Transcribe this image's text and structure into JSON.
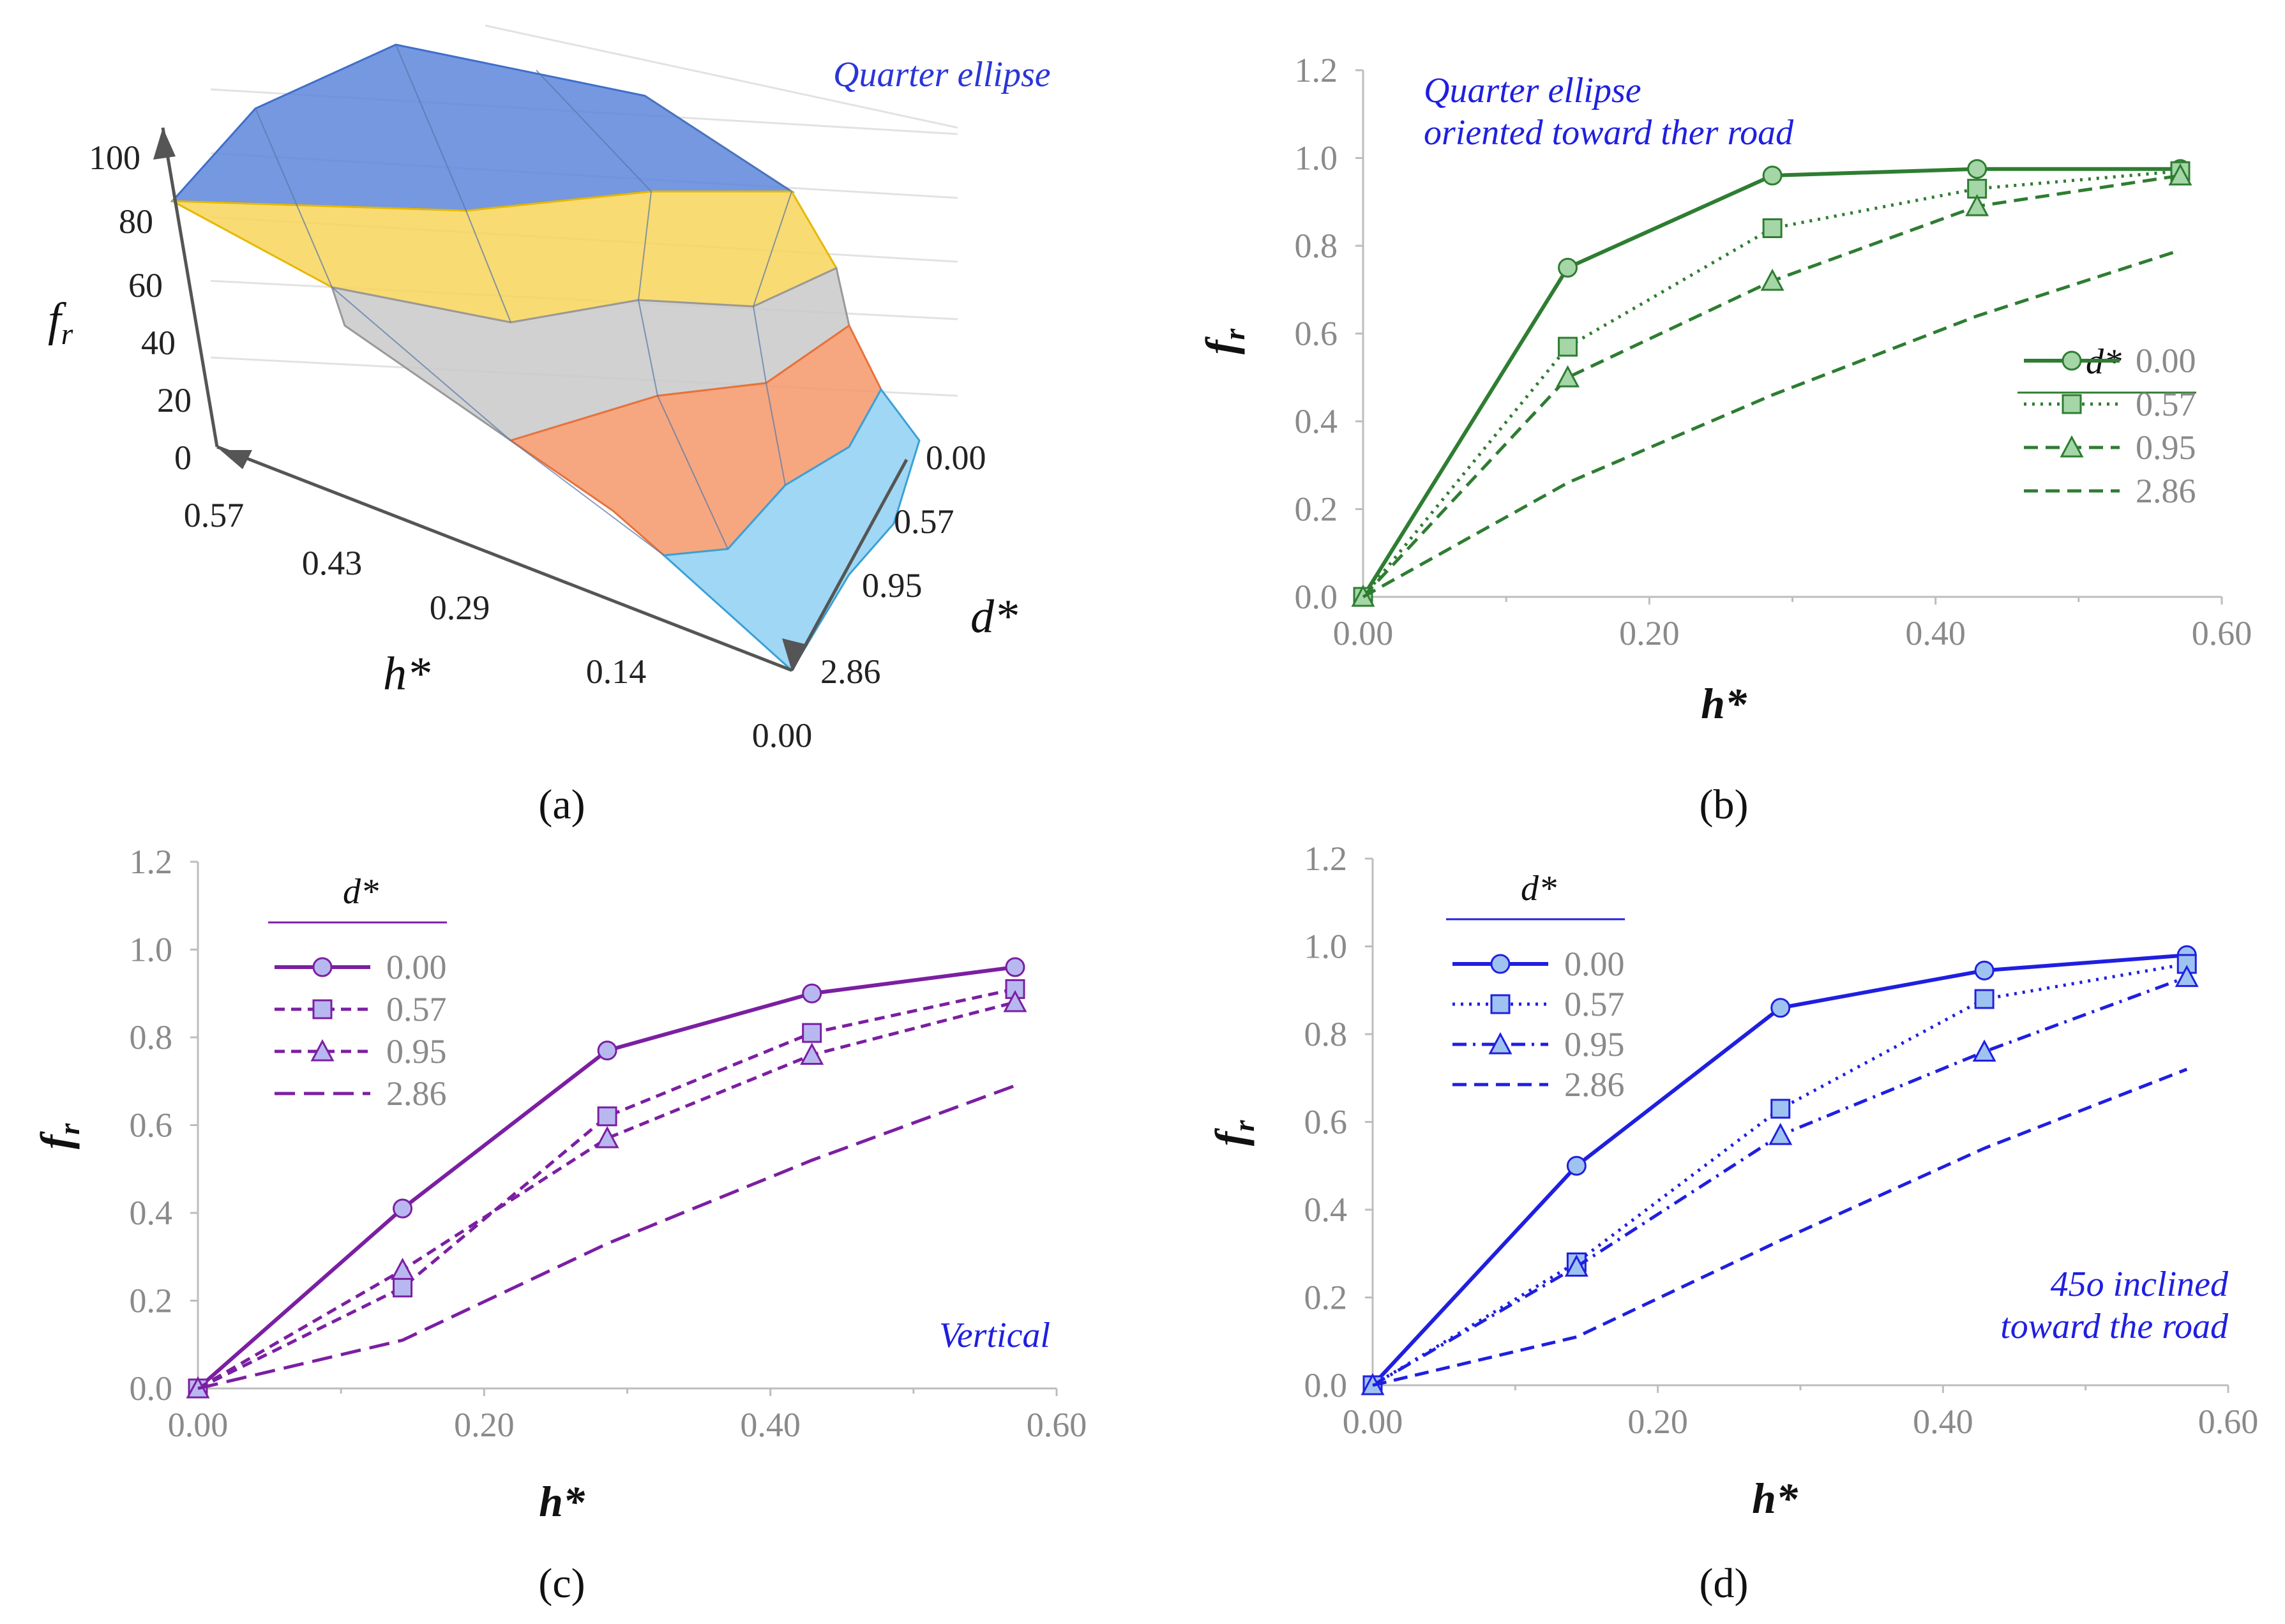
{
  "panel_labels": {
    "a": "(a)",
    "b": "(b)",
    "c": "(c)",
    "d": "(d)"
  },
  "chart_data": [
    {
      "id": "a",
      "type": "surface3d",
      "annotation": "Quarter ellipse",
      "zlabel": "f",
      "zlabel_sub": "r",
      "xlabel": "h*",
      "ylabel": "d*",
      "z_ticks": [
        "0",
        "20",
        "40",
        "60",
        "80",
        "100"
      ],
      "h_ticks": [
        "0.57",
        "0.43",
        "0.29",
        "0.14",
        "0.00"
      ],
      "d_ticks": [
        "0.00",
        "0.57",
        "0.95",
        "2.86"
      ],
      "colors": {
        "80-100": "#6f95e0",
        "60-80": "#f7d84a",
        "40-60": "#c8c8c8",
        "20-40": "#f39a6b",
        "0-20": "#7fc3ec"
      }
    },
    {
      "id": "b",
      "type": "line",
      "color": "#2e7d32",
      "marker_fill": "#a5d6a7",
      "annotation": [
        "Quarter ellipse",
        "oriented toward ther road"
      ],
      "annotation_color": "#1f1fe0",
      "xlabel": "h*",
      "ylabel": "f",
      "ylabel_sub": "r",
      "xlim": [
        0,
        0.6
      ],
      "ylim": [
        0,
        1.2
      ],
      "xticks": [
        "0.00",
        "0.20",
        "0.40",
        "0.60"
      ],
      "yticks": [
        "0.0",
        "0.2",
        "0.4",
        "0.6",
        "0.8",
        "1.0",
        "1.2"
      ],
      "legend_title": "d*",
      "x": [
        0,
        0.143,
        0.286,
        0.429,
        0.571
      ],
      "series": [
        {
          "name": "0.00",
          "values": [
            0,
            0.75,
            0.96,
            0.975,
            0.975
          ],
          "dash": "solid",
          "marker": "circle"
        },
        {
          "name": "0.57",
          "values": [
            0,
            0.57,
            0.84,
            0.93,
            0.97
          ],
          "dash": "dot",
          "marker": "square"
        },
        {
          "name": "0.95",
          "values": [
            0,
            0.5,
            0.72,
            0.89,
            0.96
          ],
          "dash": "dash",
          "marker": "triangle"
        },
        {
          "name": "2.86",
          "values": [
            0,
            0.26,
            0.46,
            0.64,
            0.79
          ],
          "dash": "dash",
          "marker": "none"
        }
      ]
    },
    {
      "id": "c",
      "type": "line",
      "color": "#7b1fa2",
      "marker_fill": "#b8b8f0",
      "annotation": [
        "Vertical"
      ],
      "annotation_color": "#1f1fe0",
      "xlabel": "h*",
      "ylabel": "f",
      "ylabel_sub": "r",
      "xlim": [
        0,
        0.6
      ],
      "ylim": [
        0,
        1.2
      ],
      "xticks": [
        "0.00",
        "0.20",
        "0.40",
        "0.60"
      ],
      "yticks": [
        "0.0",
        "0.2",
        "0.4",
        "0.6",
        "0.8",
        "1.0",
        "1.2"
      ],
      "legend_title": "d*",
      "x": [
        0,
        0.143,
        0.286,
        0.429,
        0.571
      ],
      "series": [
        {
          "name": "0.00",
          "values": [
            0,
            0.41,
            0.77,
            0.9,
            0.96
          ],
          "dash": "solid",
          "marker": "circle"
        },
        {
          "name": "0.57",
          "values": [
            0,
            0.23,
            0.62,
            0.81,
            0.91
          ],
          "dash": "shortdash",
          "marker": "square"
        },
        {
          "name": "0.95",
          "values": [
            0,
            0.27,
            0.57,
            0.76,
            0.88
          ],
          "dash": "shortdash",
          "marker": "triangle"
        },
        {
          "name": "2.86",
          "values": [
            0,
            0.11,
            0.33,
            0.52,
            0.69
          ],
          "dash": "longdash",
          "marker": "none"
        }
      ]
    },
    {
      "id": "d",
      "type": "line",
      "color": "#1f1fe0",
      "marker_fill": "#9fc3f0",
      "annotation": [
        "45o inclined",
        "toward the road"
      ],
      "annotation_color": "#1f1fe0",
      "xlabel": "h*",
      "ylabel": "f",
      "ylabel_sub": "r",
      "xlim": [
        0,
        0.6
      ],
      "ylim": [
        0,
        1.2
      ],
      "xticks": [
        "0.00",
        "0.20",
        "0.40",
        "0.60"
      ],
      "yticks": [
        "0.0",
        "0.2",
        "0.4",
        "0.6",
        "0.8",
        "1.0",
        "1.2"
      ],
      "legend_title": "d*",
      "x": [
        0,
        0.143,
        0.286,
        0.429,
        0.571
      ],
      "series": [
        {
          "name": "0.00",
          "values": [
            0,
            0.5,
            0.86,
            0.945,
            0.98
          ],
          "dash": "solid",
          "marker": "circle"
        },
        {
          "name": "0.57",
          "values": [
            0,
            0.28,
            0.63,
            0.88,
            0.96
          ],
          "dash": "dot",
          "marker": "square"
        },
        {
          "name": "0.95",
          "values": [
            0,
            0.27,
            0.57,
            0.76,
            0.93
          ],
          "dash": "dashdot",
          "marker": "triangle"
        },
        {
          "name": "2.86",
          "values": [
            0,
            0.11,
            0.33,
            0.54,
            0.72
          ],
          "dash": "dash",
          "marker": "none"
        }
      ]
    }
  ]
}
